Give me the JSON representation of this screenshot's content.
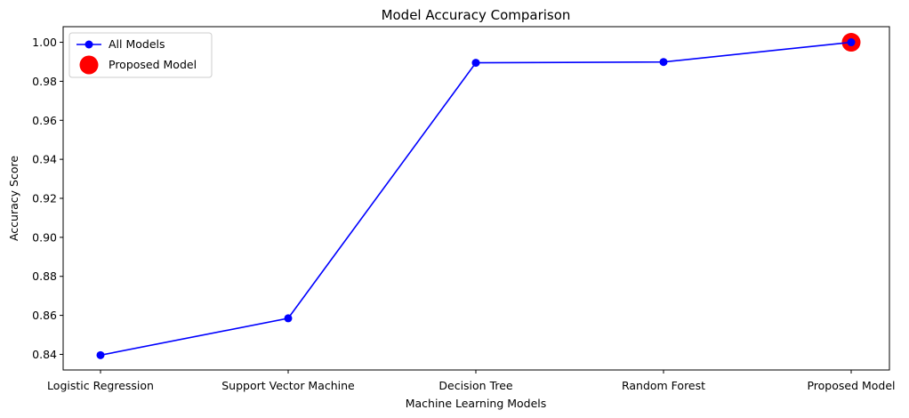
{
  "chart_data": {
    "type": "line",
    "title": "Model Accuracy Comparison",
    "xlabel": "Machine Learning Models",
    "ylabel": "Accuracy Score",
    "categories": [
      "Logistic Regression",
      "Support Vector Machine",
      "Decision Tree",
      "Random Forest",
      "Proposed Model"
    ],
    "series": [
      {
        "name": "All Models",
        "color": "#0000ff",
        "marker": "circle",
        "values": [
          0.8396,
          0.8585,
          0.9895,
          0.9899,
          1.0
        ]
      }
    ],
    "highlight": {
      "name": "Proposed Model",
      "color": "#ff0000",
      "category": "Proposed Model",
      "value": 1.0
    },
    "ylim": [
      0.832,
      1.008
    ],
    "yticks": [
      0.84,
      0.86,
      0.88,
      0.9,
      0.92,
      0.94,
      0.96,
      0.98,
      1.0
    ],
    "ytick_labels": [
      "0.84",
      "0.86",
      "0.88",
      "0.90",
      "0.92",
      "0.94",
      "0.96",
      "0.98",
      "1.00"
    ],
    "grid": false,
    "legend_position": "top-left"
  }
}
